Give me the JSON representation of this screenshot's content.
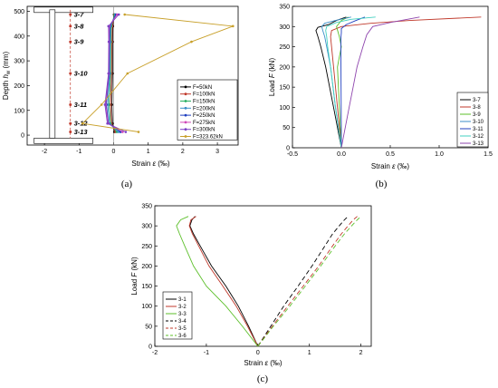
{
  "chart_data": [
    {
      "id": "a",
      "type": "line",
      "panel_label": "(a)",
      "xlabel": "Strain ε (‰)",
      "ylabel": "Depth h_w (mm)",
      "xlim": [
        -2.5,
        3.6
      ],
      "ylim": [
        -40,
        520
      ],
      "xticks": [
        "-2",
        "-1",
        "0",
        "1",
        "2",
        "3"
      ],
      "yticks": [
        "0",
        "100",
        "200",
        "300",
        "400",
        "500"
      ],
      "gauge_labels": [
        {
          "label": "3-7",
          "depth": 487
        },
        {
          "label": "3-8",
          "depth": 440
        },
        {
          "label": "3-9",
          "depth": 377
        },
        {
          "label": "3-10",
          "depth": 249
        },
        {
          "label": "3-11",
          "depth": 123
        },
        {
          "label": "3-12",
          "depth": 47
        },
        {
          "label": "3-13",
          "depth": 13
        }
      ],
      "depths": [
        487,
        440,
        377,
        249,
        123,
        47,
        13
      ],
      "series": [
        {
          "name": "F=50kN",
          "color": "#000000",
          "values": [
            0.01,
            -0.02,
            -0.03,
            -0.03,
            -0.05,
            -0.03,
            0.02
          ]
        },
        {
          "name": "F=100kN",
          "color": "#c0392b",
          "values": [
            0.02,
            -0.04,
            -0.05,
            -0.06,
            -0.09,
            -0.06,
            0.05
          ]
        },
        {
          "name": "F=150kN",
          "color": "#27ae60",
          "values": [
            0.03,
            -0.07,
            -0.08,
            -0.09,
            -0.13,
            -0.09,
            0.09
          ]
        },
        {
          "name": "F=200kN",
          "color": "#3b8ec8",
          "values": [
            0.05,
            -0.09,
            -0.1,
            -0.11,
            -0.17,
            -0.12,
            0.14
          ]
        },
        {
          "name": "F=250kN",
          "color": "#1f3fbf",
          "values": [
            0.07,
            -0.11,
            -0.12,
            -0.13,
            -0.21,
            -0.15,
            0.2
          ]
        },
        {
          "name": "F=275kN",
          "color": "#d048b8",
          "values": [
            0.1,
            -0.13,
            -0.13,
            -0.14,
            -0.23,
            -0.16,
            0.26
          ]
        },
        {
          "name": "F=300kN",
          "color": "#7b3fc4",
          "values": [
            0.15,
            -0.15,
            -0.14,
            -0.15,
            -0.25,
            -0.18,
            0.35
          ]
        },
        {
          "name": "F=323.62kN",
          "color": "#c8a02a",
          "values": [
            0.32,
            3.45,
            2.25,
            0.4,
            -0.35,
            -0.9,
            0.72
          ]
        }
      ]
    },
    {
      "id": "b",
      "type": "line",
      "panel_label": "(b)",
      "xlabel": "Strain ε (‰)",
      "ylabel": "Load F (kN)",
      "xlim": [
        -0.5,
        1.5
      ],
      "ylim": [
        0,
        350
      ],
      "xticks": [
        "-0.5",
        "0.0",
        "0.5",
        "1.0",
        "1.5"
      ],
      "yticks": [
        "0",
        "50",
        "100",
        "150",
        "200",
        "250",
        "300",
        "350"
      ],
      "series": [
        {
          "name": "3-7",
          "color": "#000000",
          "dash": "",
          "loads": [
            0,
            100,
            200,
            250,
            275,
            290,
            298,
            305,
            315,
            323.6
          ],
          "strains": [
            0.0,
            -0.08,
            -0.16,
            -0.21,
            -0.24,
            -0.26,
            -0.24,
            -0.13,
            -0.05,
            0.05
          ]
        },
        {
          "name": "3-8",
          "color": "#c0392b",
          "dash": "",
          "loads": [
            0,
            100,
            200,
            250,
            275,
            290,
            300,
            308,
            315,
            323.6
          ],
          "strains": [
            0.0,
            -0.04,
            -0.08,
            -0.1,
            -0.11,
            -0.1,
            0.0,
            0.3,
            0.7,
            1.43
          ]
        },
        {
          "name": "3-9",
          "color": "#5cbf2a",
          "dash": "",
          "loads": [
            0,
            100,
            200,
            225,
            250,
            275,
            300,
            315,
            323.6
          ],
          "strains": [
            0.0,
            -0.02,
            -0.04,
            -0.02,
            0.0,
            -0.02,
            -0.05,
            0.0,
            0.07
          ]
        },
        {
          "name": "3-10",
          "color": "#3b8ec8",
          "dash": "",
          "loads": [
            0,
            100,
            200,
            250,
            275,
            290,
            300,
            308,
            315,
            323.6
          ],
          "strains": [
            0.0,
            -0.06,
            -0.11,
            -0.15,
            -0.17,
            -0.19,
            -0.2,
            -0.17,
            -0.06,
            0.1
          ]
        },
        {
          "name": "3-11",
          "color": "#1f3fbf",
          "dash": "",
          "loads": [
            0,
            100,
            200,
            250,
            275,
            285,
            295,
            305,
            315,
            323.6
          ],
          "strains": [
            0.0,
            -0.002,
            -0.004,
            -0.005,
            -0.004,
            0.0,
            0.0,
            0.05,
            0.15,
            0.24
          ]
        },
        {
          "name": "3-12",
          "color": "#43d0c0",
          "dash": "",
          "loads": [
            0,
            100,
            200,
            250,
            275,
            290,
            300,
            310,
            318,
            323.6
          ],
          "strains": [
            0.0,
            -0.06,
            -0.11,
            -0.14,
            -0.15,
            -0.16,
            -0.15,
            -0.05,
            0.1,
            0.35
          ]
        },
        {
          "name": "3-13",
          "color": "#8e44ad",
          "dash": "",
          "loads": [
            0,
            50,
            100,
            150,
            200,
            250,
            280,
            300,
            310,
            323.6
          ],
          "strains": [
            0.0,
            0.04,
            0.08,
            0.12,
            0.16,
            0.22,
            0.26,
            0.32,
            0.5,
            0.8
          ]
        }
      ]
    },
    {
      "id": "c",
      "type": "line",
      "panel_label": "(c)",
      "xlabel": "Strain ε (‰)",
      "ylabel": "Load F (kN)",
      "xlim": [
        -2,
        2.2
      ],
      "ylim": [
        0,
        350
      ],
      "xticks": [
        "-2",
        "-1",
        "0",
        "1",
        "2"
      ],
      "yticks": [
        "0",
        "50",
        "100",
        "150",
        "200",
        "250",
        "300",
        "350"
      ],
      "series": [
        {
          "name": "3-1",
          "color": "#000000",
          "dash": "",
          "loads": [
            0,
            50,
            100,
            150,
            200,
            250,
            280,
            300,
            315,
            323.6
          ],
          "strains": [
            0.0,
            -0.18,
            -0.38,
            -0.62,
            -0.9,
            -1.12,
            -1.25,
            -1.32,
            -1.28,
            -1.22
          ]
        },
        {
          "name": "3-2",
          "color": "#c0392b",
          "dash": "",
          "loads": [
            0,
            50,
            100,
            150,
            200,
            250,
            280,
            300,
            315,
            323.6
          ],
          "strains": [
            0.0,
            -0.2,
            -0.42,
            -0.68,
            -0.95,
            -1.15,
            -1.27,
            -1.33,
            -1.3,
            -1.2
          ]
        },
        {
          "name": "3-3",
          "color": "#5cbf2a",
          "dash": "",
          "loads": [
            0,
            50,
            100,
            150,
            200,
            250,
            280,
            300,
            315,
            323.6
          ],
          "strains": [
            0.0,
            -0.3,
            -0.62,
            -1.0,
            -1.25,
            -1.42,
            -1.52,
            -1.58,
            -1.5,
            -1.35
          ]
        },
        {
          "name": "3-4",
          "color": "#000000",
          "dash": "5,3",
          "loads": [
            0,
            50,
            100,
            150,
            200,
            250,
            280,
            300,
            315,
            323.6
          ],
          "strains": [
            0.0,
            0.25,
            0.5,
            0.78,
            1.05,
            1.3,
            1.45,
            1.58,
            1.68,
            1.75
          ]
        },
        {
          "name": "3-5",
          "color": "#c0392b",
          "dash": "5,3",
          "loads": [
            0,
            50,
            100,
            150,
            200,
            250,
            280,
            300,
            315,
            323.6
          ],
          "strains": [
            0.0,
            0.28,
            0.58,
            0.88,
            1.18,
            1.45,
            1.62,
            1.75,
            1.85,
            1.93
          ]
        },
        {
          "name": "3-6",
          "color": "#5cbf2a",
          "dash": "5,3",
          "loads": [
            0,
            50,
            100,
            150,
            200,
            250,
            280,
            300,
            315,
            323.6
          ],
          "strains": [
            0.0,
            0.3,
            0.62,
            0.92,
            1.22,
            1.5,
            1.68,
            1.82,
            1.93,
            2.0
          ]
        }
      ]
    }
  ]
}
